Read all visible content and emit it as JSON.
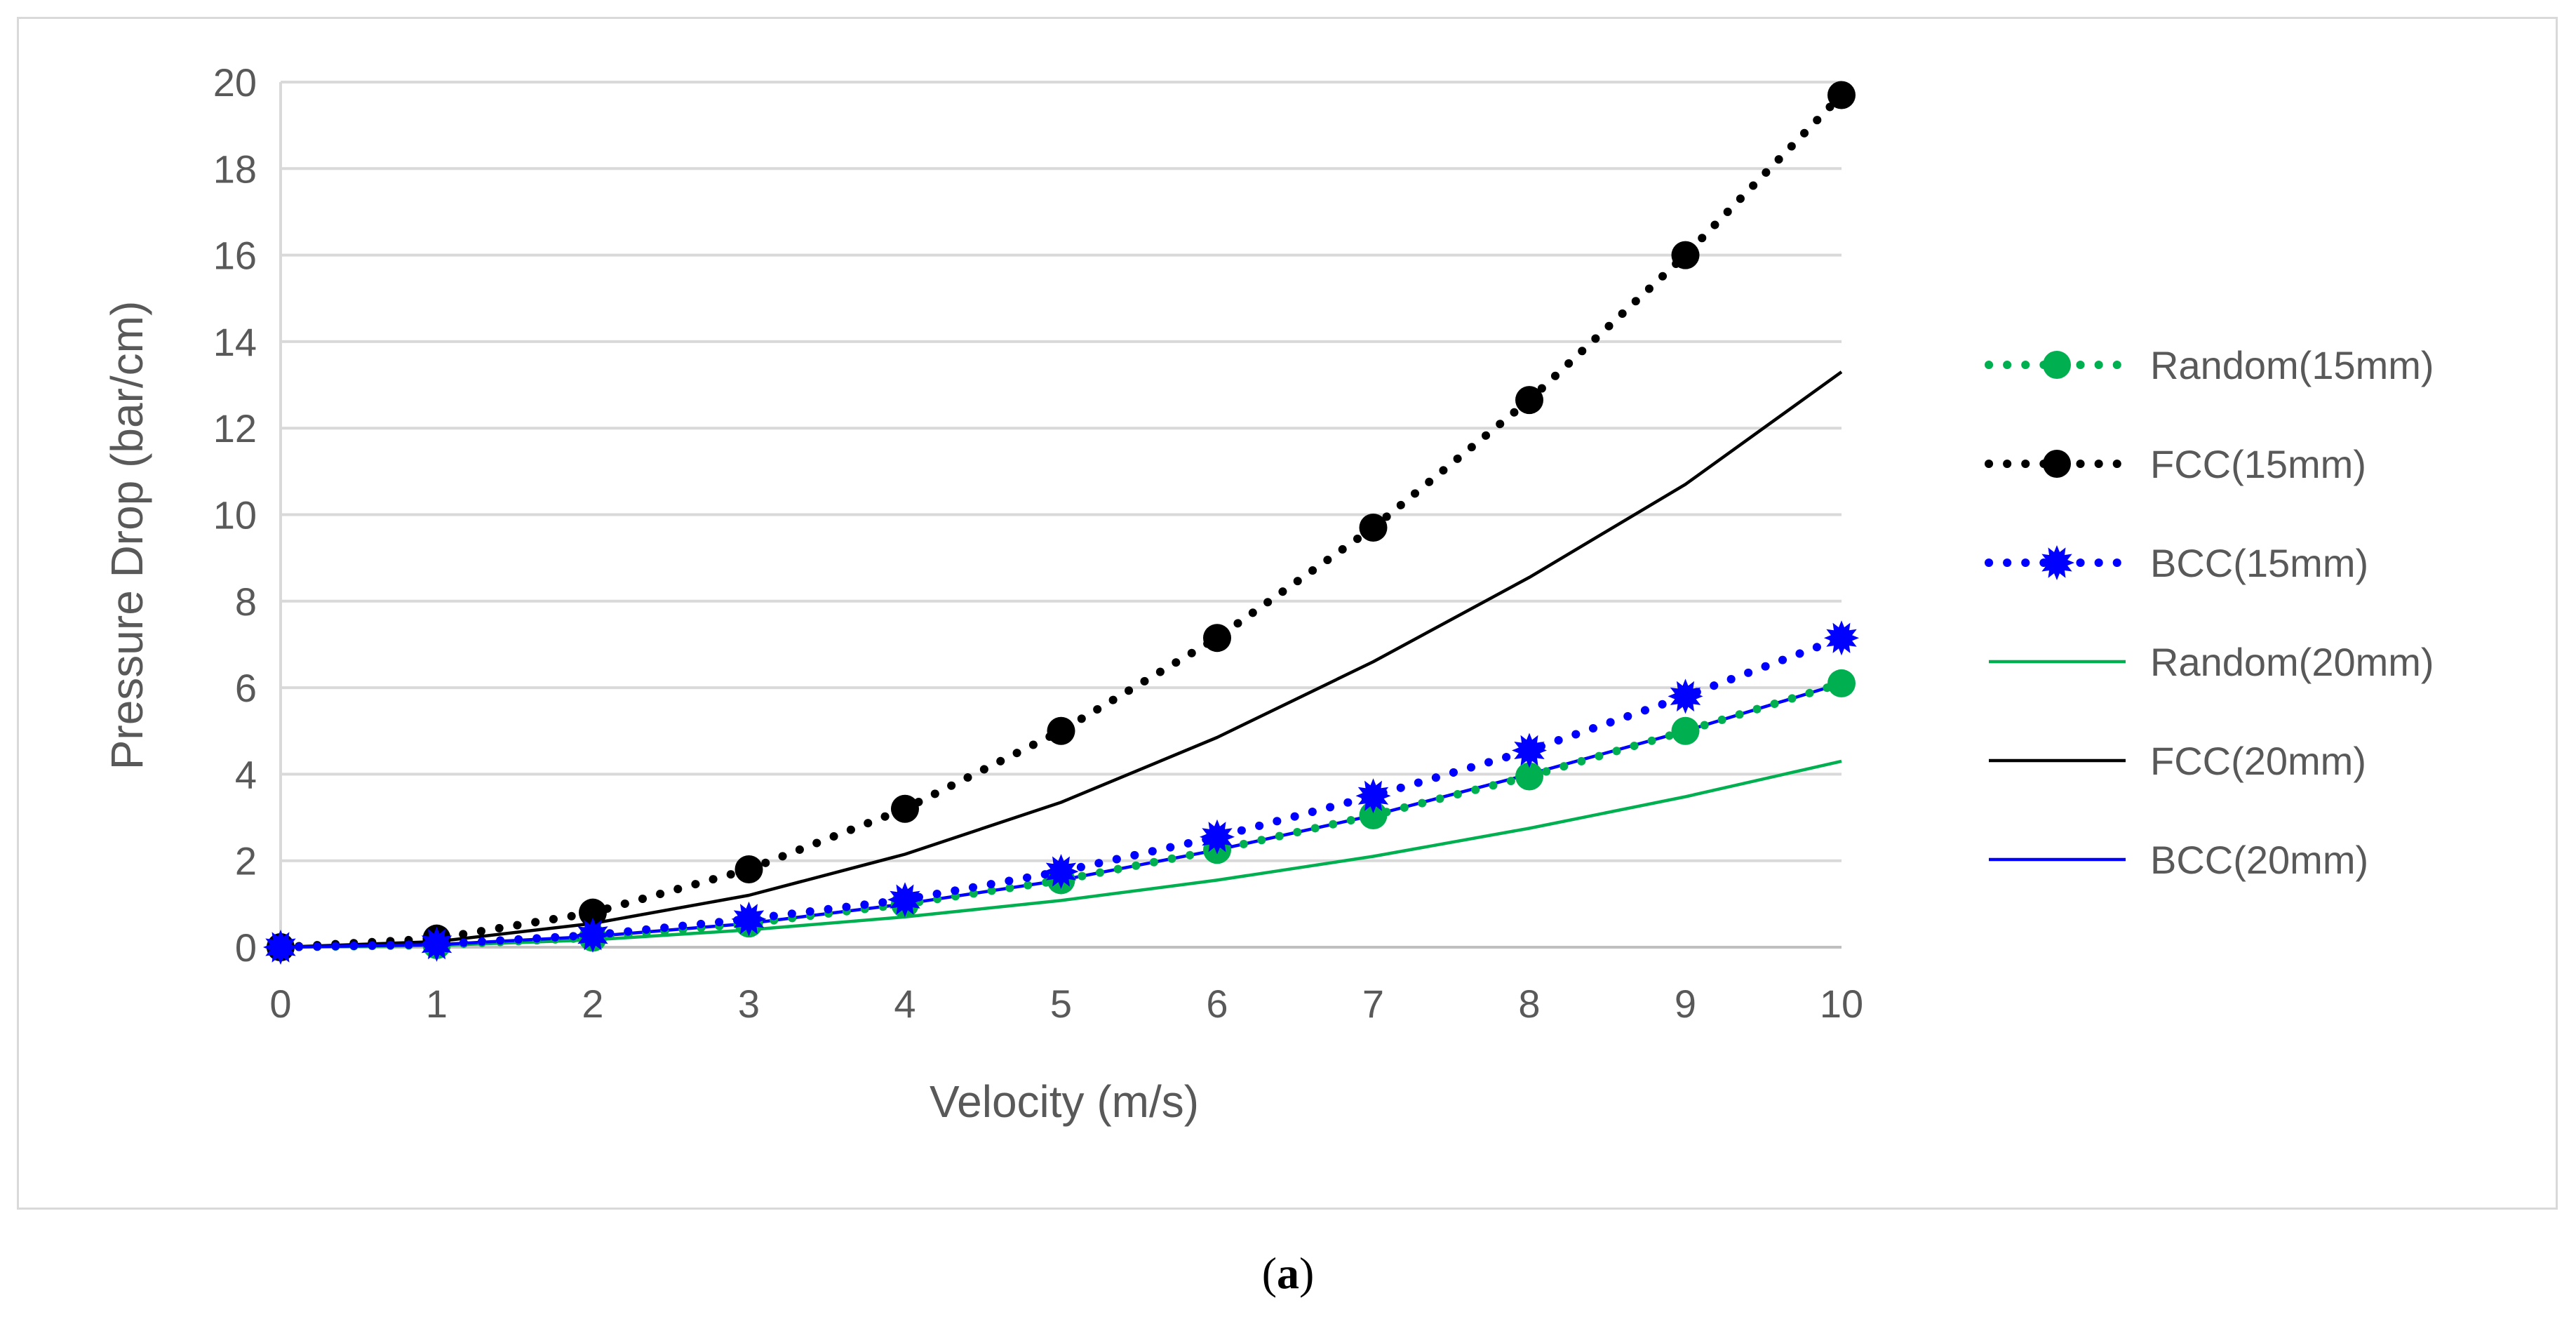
{
  "chart_data": {
    "type": "line",
    "title": "",
    "xlabel": "Velocity (m/s)",
    "ylabel": "Pressure Drop (bar/cm)",
    "x": [
      0,
      1,
      2,
      3,
      4,
      5,
      6,
      7,
      8,
      9,
      10
    ],
    "xlim": [
      0,
      10
    ],
    "ylim": [
      0,
      20
    ],
    "yticks": [
      0,
      2,
      4,
      6,
      8,
      10,
      12,
      14,
      16,
      18,
      20
    ],
    "xticks": [
      0,
      1,
      2,
      3,
      4,
      5,
      6,
      7,
      8,
      9,
      10
    ],
    "grid": "horizontal",
    "legend_position": "right",
    "series": [
      {
        "name": "Random(15mm)",
        "color": "#00b050",
        "style": "dotted",
        "marker": "circle",
        "values": [
          0,
          0.05,
          0.22,
          0.55,
          1.0,
          1.55,
          2.25,
          3.05,
          3.95,
          5.0,
          6.1
        ]
      },
      {
        "name": "FCC(15mm)",
        "color": "#000000",
        "style": "dotted",
        "marker": "circle",
        "values": [
          0,
          0.2,
          0.8,
          1.8,
          3.2,
          5.0,
          7.15,
          9.7,
          12.65,
          16.0,
          19.7
        ]
      },
      {
        "name": "BCC(15mm)",
        "color": "#0000ff",
        "style": "dotted",
        "marker": "star",
        "values": [
          0,
          0.07,
          0.28,
          0.65,
          1.1,
          1.75,
          2.55,
          3.5,
          4.55,
          5.8,
          7.15
        ]
      },
      {
        "name": "Random(20mm)",
        "color": "#00b050",
        "style": "solid",
        "marker": "none",
        "values": [
          0,
          0.04,
          0.17,
          0.4,
          0.7,
          1.08,
          1.55,
          2.1,
          2.75,
          3.48,
          4.3
        ]
      },
      {
        "name": "FCC(20mm)",
        "color": "#000000",
        "style": "solid",
        "marker": "none",
        "values": [
          0,
          0.13,
          0.55,
          1.2,
          2.15,
          3.35,
          4.85,
          6.6,
          8.55,
          10.7,
          13.3
        ]
      },
      {
        "name": "BCC(20mm)",
        "color": "#0000ff",
        "style": "solid",
        "marker": "none",
        "values": [
          0,
          0.06,
          0.25,
          0.55,
          1.0,
          1.55,
          2.25,
          3.05,
          4.0,
          5.0,
          6.1
        ]
      }
    ]
  },
  "caption": {
    "label": "a"
  }
}
